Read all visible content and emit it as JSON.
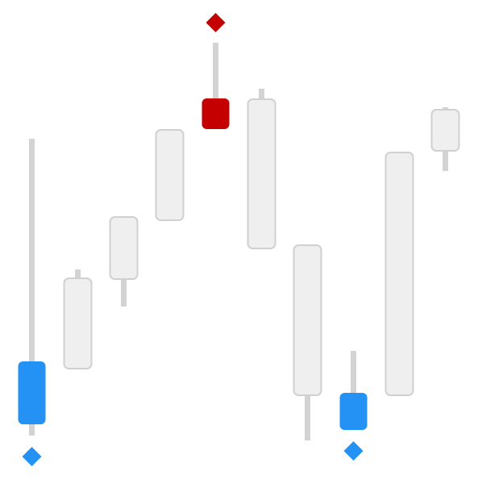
{
  "chart_data": {
    "type": "candlestick",
    "title": "",
    "xlabel": "",
    "ylabel": "",
    "ylim": [
      0,
      600
    ],
    "grid": false,
    "legend": "none",
    "colors": {
      "neutral_body": "#efefef",
      "neutral_border": "#d0d0d0",
      "wick": "#d3d3d3",
      "low_highlight": "#2392f4",
      "high_highlight": "#c40000"
    },
    "candles": [
      {
        "index": 0,
        "open": 152,
        "close": 74,
        "high": 428,
        "low": 60,
        "highlight": "low"
      },
      {
        "index": 1,
        "open": 143,
        "close": 255,
        "high": 266,
        "low": 143,
        "highlight": "none"
      },
      {
        "index": 2,
        "open": 254,
        "close": 331,
        "high": 331,
        "low": 220,
        "highlight": "none"
      },
      {
        "index": 3,
        "open": 327,
        "close": 439,
        "high": 439,
        "low": 327,
        "highlight": "none"
      },
      {
        "index": 4,
        "open": 478,
        "close": 440,
        "high": 547,
        "low": 440,
        "highlight": "high"
      },
      {
        "index": 5,
        "open": 477,
        "close": 292,
        "high": 490,
        "low": 292,
        "highlight": "none"
      },
      {
        "index": 6,
        "open": 296,
        "close": 110,
        "high": 296,
        "low": 54,
        "highlight": "none"
      },
      {
        "index": 7,
        "open": 113,
        "close": 67,
        "high": 165,
        "low": 67,
        "highlight": "low"
      },
      {
        "index": 8,
        "open": 110,
        "close": 411,
        "high": 411,
        "low": 110,
        "highlight": "none"
      },
      {
        "index": 9,
        "open": 413,
        "close": 464,
        "high": 467,
        "low": 388,
        "highlight": "none"
      }
    ],
    "markers": [
      {
        "candle": 0,
        "shape": "diamond",
        "position": "below",
        "color": "#2392f4"
      },
      {
        "candle": 4,
        "shape": "diamond",
        "position": "above",
        "color": "#c40000"
      },
      {
        "candle": 7,
        "shape": "diamond",
        "position": "below",
        "color": "#2392f4"
      }
    ]
  }
}
